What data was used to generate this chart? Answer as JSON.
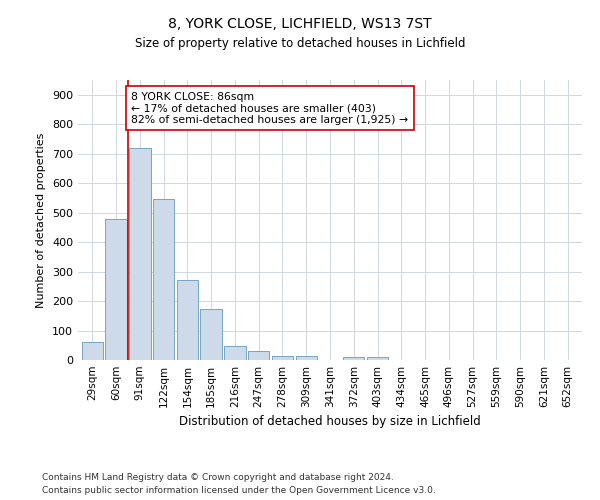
{
  "title1": "8, YORK CLOSE, LICHFIELD, WS13 7ST",
  "title2": "Size of property relative to detached houses in Lichfield",
  "xlabel": "Distribution of detached houses by size in Lichfield",
  "ylabel": "Number of detached properties",
  "categories": [
    "29sqm",
    "60sqm",
    "91sqm",
    "122sqm",
    "154sqm",
    "185sqm",
    "216sqm",
    "247sqm",
    "278sqm",
    "309sqm",
    "341sqm",
    "372sqm",
    "403sqm",
    "434sqm",
    "465sqm",
    "496sqm",
    "527sqm",
    "559sqm",
    "590sqm",
    "621sqm",
    "652sqm"
  ],
  "values": [
    60,
    480,
    720,
    545,
    270,
    173,
    47,
    32,
    15,
    13,
    0,
    9,
    9,
    0,
    0,
    0,
    0,
    0,
    0,
    0,
    0
  ],
  "bar_color": "#ccdaea",
  "bar_edge_color": "#6699bb",
  "grid_color": "#d0d8e0",
  "vline_color": "#cc0000",
  "annotation_text": "8 YORK CLOSE: 86sqm\n← 17% of detached houses are smaller (403)\n82% of semi-detached houses are larger (1,925) →",
  "annotation_box_color": "white",
  "annotation_box_edge": "#cc0000",
  "footnote1": "Contains HM Land Registry data © Crown copyright and database right 2024.",
  "footnote2": "Contains public sector information licensed under the Open Government Licence v3.0.",
  "ylim": [
    0,
    950
  ],
  "yticks": [
    0,
    100,
    200,
    300,
    400,
    500,
    600,
    700,
    800,
    900
  ],
  "figsize": [
    6.0,
    5.0
  ],
  "dpi": 100
}
